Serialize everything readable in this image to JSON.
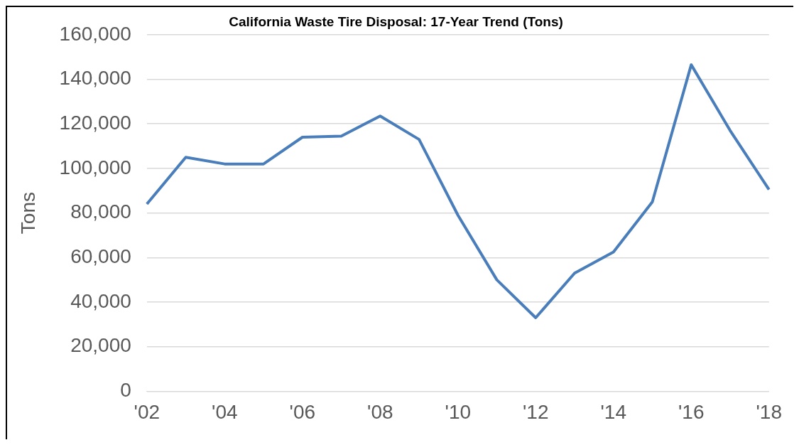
{
  "chart_data": {
    "type": "line",
    "title": "California Waste Tire Disposal: 17-Year Trend (Tons)",
    "ylabel": "Tons",
    "categories": [
      "'02",
      null,
      "'04",
      null,
      "'06",
      null,
      "'08",
      null,
      "'10",
      null,
      "'12",
      null,
      "'14",
      null,
      "'16",
      null,
      "'18"
    ],
    "series": [
      {
        "color": "#4a7ebb",
        "values": [
          84000,
          105000,
          102000,
          102000,
          114000,
          114500,
          123500,
          113000,
          79000,
          50000,
          33000,
          53000,
          62500,
          85000,
          146500,
          117000,
          90500
        ]
      }
    ],
    "ylim": [
      0,
      160000
    ],
    "yticks": [
      {
        "value": 0,
        "label": "0"
      },
      {
        "value": 20000,
        "label": "20,000"
      },
      {
        "value": 40000,
        "label": "40,000"
      },
      {
        "value": 60000,
        "label": "60,000"
      },
      {
        "value": 80000,
        "label": "80,000"
      },
      {
        "value": 100000,
        "label": "100,000"
      },
      {
        "value": 120000,
        "label": "120,000"
      },
      {
        "value": 140000,
        "label": "140,000"
      },
      {
        "value": 160000,
        "label": "160,000"
      }
    ],
    "grid": "y",
    "legend": false,
    "marker": "none",
    "line_style": "solid"
  }
}
